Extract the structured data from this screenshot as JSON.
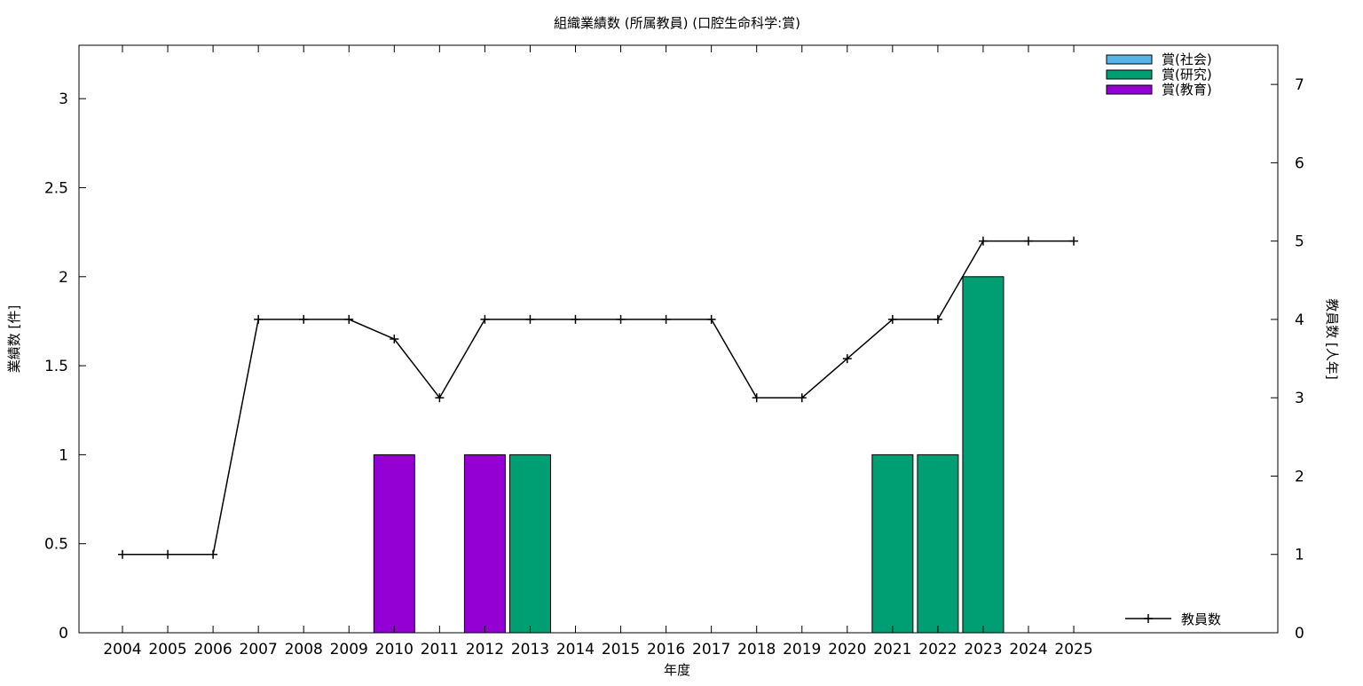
{
  "chart_data": {
    "type": "bar",
    "title": "組織業績数 (所属教員) (口腔生命科学:賞)",
    "xlabel": "年度",
    "ylabel": "業績数 [件]",
    "y2label": "教員数 [人年]",
    "categories": [
      "2004",
      "2005",
      "2006",
      "2007",
      "2008",
      "2009",
      "2010",
      "2011",
      "2012",
      "2013",
      "2014",
      "2015",
      "2016",
      "2017",
      "2018",
      "2019",
      "2020",
      "2021",
      "2022",
      "2023",
      "2024",
      "2025"
    ],
    "ylim": [
      0,
      3.3
    ],
    "yticks": [
      "0",
      "0.5",
      "1",
      "1.5",
      "2",
      "2.5",
      "3"
    ],
    "y2lim": [
      0,
      7.5
    ],
    "y2ticks": [
      "0",
      "1",
      "2",
      "3",
      "4",
      "5",
      "6",
      "7"
    ],
    "series": [
      {
        "name": "賞(社会)",
        "color": "#56b4e9",
        "values": [
          0,
          0,
          0,
          0,
          0,
          0,
          0,
          0,
          0,
          0,
          0,
          0,
          0,
          0,
          0,
          0,
          0,
          0,
          0,
          0,
          0,
          0
        ]
      },
      {
        "name": "賞(研究)",
        "color": "#009e73",
        "values": [
          0,
          0,
          0,
          0,
          0,
          0,
          0,
          0,
          0,
          1,
          0,
          0,
          0,
          0,
          0,
          0,
          0,
          1,
          1,
          2,
          0,
          0
        ]
      },
      {
        "name": "賞(教育)",
        "color": "#9400d3",
        "values": [
          0,
          0,
          0,
          0,
          0,
          0,
          1,
          0,
          1,
          0,
          0,
          0,
          0,
          0,
          0,
          0,
          0,
          0,
          0,
          0,
          0,
          0
        ]
      }
    ],
    "line_series": {
      "name": "教員数",
      "color": "#000000",
      "axis": "y2",
      "values": [
        1,
        1,
        1,
        4,
        4,
        4,
        3.75,
        3,
        4,
        4,
        4,
        4,
        4,
        4,
        3,
        3,
        3.5,
        4,
        4,
        5,
        5,
        5
      ]
    },
    "legend_position": "top-right",
    "line_legend_position": "bottom-right",
    "grid": false
  }
}
